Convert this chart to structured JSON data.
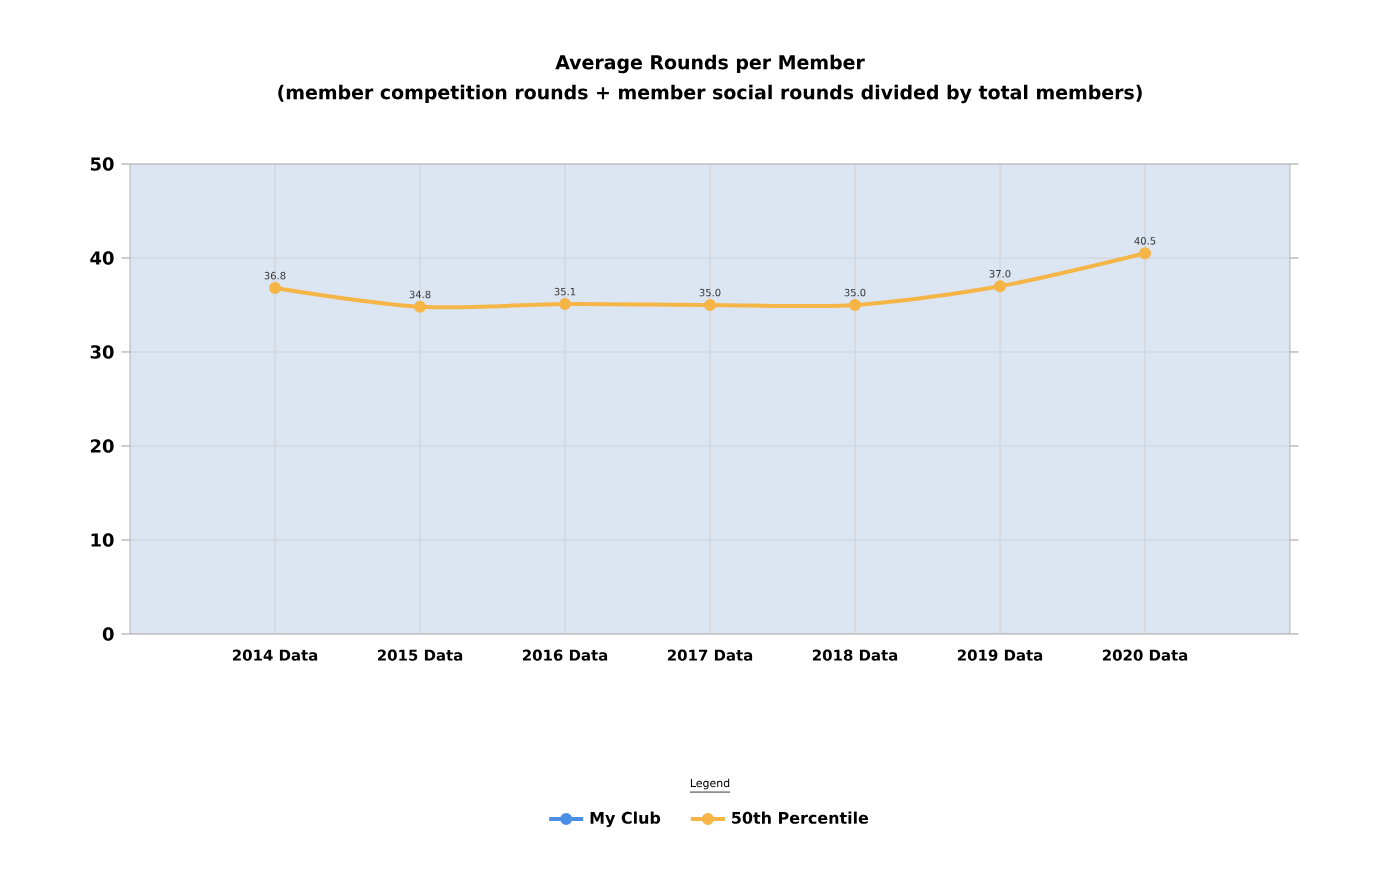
{
  "chart_data": {
    "type": "line",
    "title": "Average Rounds per Member",
    "subtitle": "(member competition rounds + member social rounds divided by total members)",
    "categories": [
      "2014 Data",
      "2015 Data",
      "2016 Data",
      "2017 Data",
      "2018 Data",
      "2019 Data",
      "2020 Data"
    ],
    "series": [
      {
        "name": "My Club",
        "color": "#4a8ee6",
        "values": [
          null,
          null,
          null,
          null,
          null,
          null,
          null
        ]
      },
      {
        "name": "50th Percentile",
        "color": "#f5b547",
        "values": [
          36.8,
          34.8,
          35.1,
          35.0,
          35.0,
          37.0,
          40.5
        ],
        "value_labels": [
          "36.8",
          "34.8",
          "35.1",
          "35.0",
          "35.0",
          "37.0",
          "40.5"
        ]
      }
    ],
    "ylim": [
      0,
      50
    ],
    "yticks": [
      0,
      10,
      20,
      30,
      40,
      50
    ],
    "grid": true,
    "legend": "bottom",
    "legend_title": "Legend",
    "marker": "circle",
    "line_style": "solid"
  }
}
